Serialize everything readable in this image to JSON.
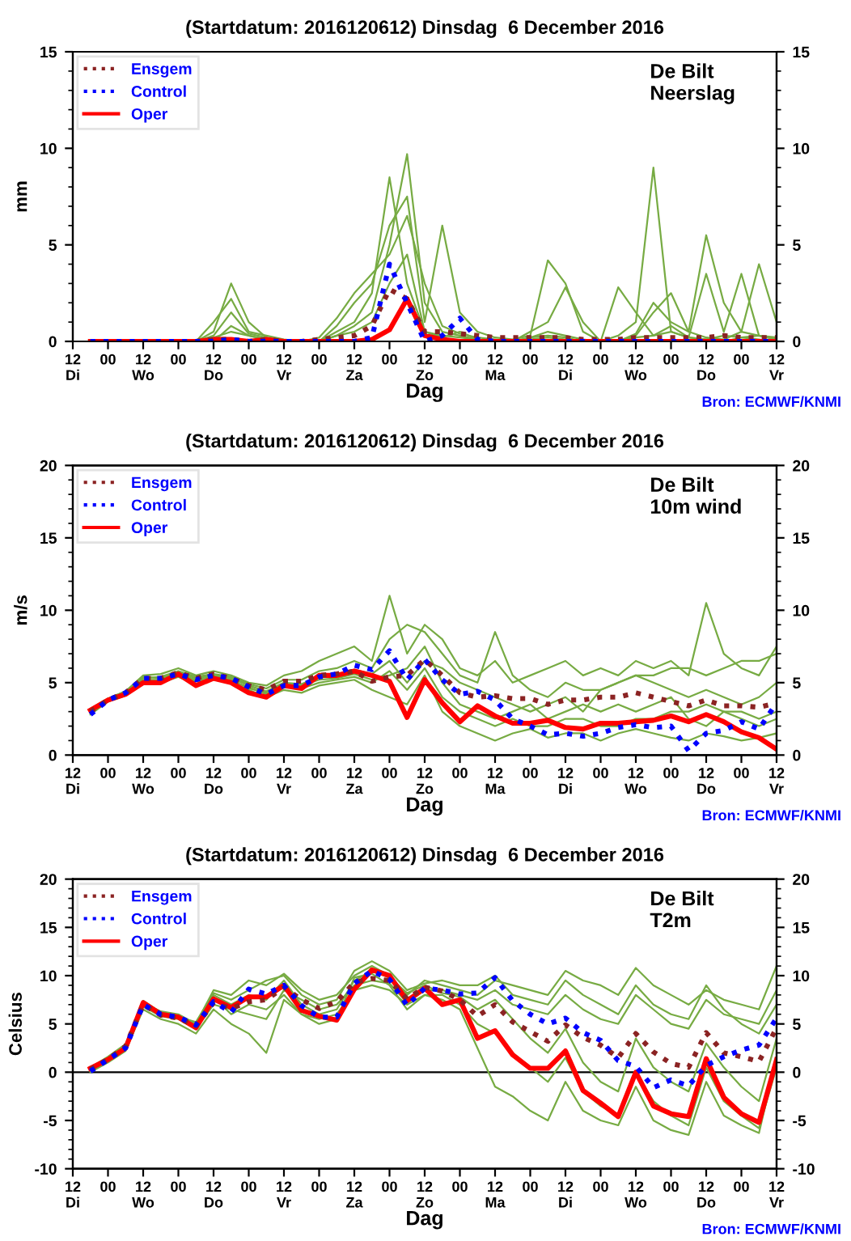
{
  "chart_data": [
    {
      "type": "line",
      "title": "(Startdatum: 2016120612) Dinsdag  6 December 2016",
      "xlabel": "Dag",
      "ylabel": "mm",
      "annotations": [
        "De Bilt\nNeerslag",
        "Bron: ECMWF/KNMI"
      ],
      "legend": "top left",
      "grid": false,
      "line_style": "solid",
      "marker": "none",
      "x": [
        "2016-12-06T18:00",
        "2016-12-07T00:00",
        "2016-12-07T06:00",
        "2016-12-07T12:00",
        "2016-12-07T18:00",
        "2016-12-08T00:00",
        "2016-12-08T06:00",
        "2016-12-08T12:00",
        "2016-12-08T18:00",
        "2016-12-09T00:00",
        "2016-12-09T06:00",
        "2016-12-09T12:00",
        "2016-12-09T18:00",
        "2016-12-10T00:00",
        "2016-12-10T06:00",
        "2016-12-10T12:00",
        "2016-12-10T18:00",
        "2016-12-11T00:00",
        "2016-12-11T06:00",
        "2016-12-11T12:00",
        "2016-12-11T18:00",
        "2016-12-12T00:00",
        "2016-12-12T06:00",
        "2016-12-12T12:00",
        "2016-12-12T18:00",
        "2016-12-13T00:00",
        "2016-12-13T06:00",
        "2016-12-13T12:00",
        "2016-12-13T18:00",
        "2016-12-14T00:00",
        "2016-12-14T06:00",
        "2016-12-14T12:00",
        "2016-12-14T18:00",
        "2016-12-15T00:00",
        "2016-12-15T06:00",
        "2016-12-15T12:00",
        "2016-12-15T18:00",
        "2016-12-16T00:00",
        "2016-12-16T06:00",
        "2016-12-16T12:00"
      ],
      "xlim": [
        "2016-12-06T12:00",
        "2016-12-16T12:00"
      ],
      "xticks": [
        {
          "value": "2016-12-06T12:00",
          "label": "12\nDi"
        },
        {
          "value": "2016-12-07T00:00",
          "label": "00"
        },
        {
          "value": "2016-12-07T12:00",
          "label": "12\nWo"
        },
        {
          "value": "2016-12-08T00:00",
          "label": "00"
        },
        {
          "value": "2016-12-08T12:00",
          "label": "12\nDo"
        },
        {
          "value": "2016-12-09T00:00",
          "label": "00"
        },
        {
          "value": "2016-12-09T12:00",
          "label": "12\nVr"
        },
        {
          "value": "2016-12-10T00:00",
          "label": "00"
        },
        {
          "value": "2016-12-10T12:00",
          "label": "12\nZa"
        },
        {
          "value": "2016-12-11T00:00",
          "label": "00"
        },
        {
          "value": "2016-12-11T12:00",
          "label": "12\nZo"
        },
        {
          "value": "2016-12-12T00:00",
          "label": "00"
        },
        {
          "value": "2016-12-12T12:00",
          "label": "12\nMa"
        },
        {
          "value": "2016-12-13T00:00",
          "label": "00"
        },
        {
          "value": "2016-12-13T12:00",
          "label": "12\nDi"
        },
        {
          "value": "2016-12-14T00:00",
          "label": "00"
        },
        {
          "value": "2016-12-14T12:00",
          "label": "12\nWo"
        },
        {
          "value": "2016-12-15T00:00",
          "label": "00"
        },
        {
          "value": "2016-12-15T12:00",
          "label": "12\nDo"
        },
        {
          "value": "2016-12-16T00:00",
          "label": "00"
        },
        {
          "value": "2016-12-16T12:00",
          "label": "12\nVr"
        }
      ],
      "ylim": [
        0,
        15
      ],
      "yticks": [
        0,
        5,
        10,
        15
      ],
      "y2lim": [
        0,
        15
      ],
      "y2ticks": [
        0,
        5,
        10,
        15
      ],
      "series": [
        {
          "color": "#77ab43",
          "values": [
            null,
            null,
            null,
            null,
            null,
            0,
            0,
            0.5,
            3.0,
            1.0,
            0.2,
            0,
            0,
            0,
            0.3,
            0.8,
            1.5,
            5.0,
            9.7,
            2.0,
            0.5,
            0.3,
            0.1,
            0,
            0,
            0.2,
            0.5,
            0.3,
            0.1,
            0,
            0,
            0.2,
            0.3,
            0.5,
            0.2,
            0.1,
            0,
            0.2,
            0.3,
            0.1
          ]
        },
        {
          "color": "#77ab43",
          "values": [
            null,
            null,
            null,
            null,
            null,
            0,
            0,
            0.2,
            0.5,
            0.3,
            0.1,
            0,
            0,
            0,
            0.5,
            1.0,
            2.5,
            8.5,
            3.0,
            0.5,
            0.3,
            0.2,
            0.1,
            0,
            0,
            0.1,
            0.2,
            0.1,
            0,
            0,
            0.3,
            1.0,
            9.0,
            0.5,
            0.2,
            0.1,
            0.3,
            0.2,
            0.1,
            0
          ]
        },
        {
          "color": "#77ab43",
          "values": [
            null,
            null,
            null,
            null,
            null,
            0,
            0,
            1.0,
            2.2,
            0.5,
            0.3,
            0.1,
            0,
            0,
            0.8,
            2.0,
            3.0,
            6.0,
            7.5,
            1.0,
            6.0,
            1.5,
            0.5,
            0.2,
            0.1,
            0.3,
            4.2,
            3.0,
            0.5,
            0,
            0,
            0.3,
            1.5,
            2.5,
            0.5,
            0.2,
            0.1,
            0.5,
            0.3,
            0.2
          ]
        },
        {
          "color": "#77ab43",
          "values": [
            null,
            null,
            null,
            null,
            null,
            0,
            0,
            0.3,
            1.5,
            0.4,
            0.2,
            0,
            0,
            0.2,
            1.2,
            2.5,
            3.5,
            4.5,
            6.5,
            3.0,
            0.8,
            0.4,
            0.2,
            0.1,
            0,
            0.5,
            1.0,
            2.8,
            1.0,
            0,
            0,
            0.4,
            2.0,
            1.0,
            0.5,
            5.5,
            2.0,
            0.5,
            4.0,
            1.0
          ]
        },
        {
          "color": "#77ab43",
          "values": [
            null,
            null,
            null,
            null,
            null,
            0,
            0,
            0,
            0.8,
            0.3,
            0.1,
            0,
            0,
            0,
            0.3,
            0.5,
            1.0,
            3.0,
            4.5,
            0.5,
            0.2,
            0.5,
            0.1,
            0,
            0,
            0.2,
            0.3,
            0.2,
            0,
            0,
            2.8,
            1.5,
            0.3,
            0.8,
            0.2,
            3.5,
            0.5,
            3.5,
            0.3,
            0.1
          ]
        },
        {
          "name": "Ensgem",
          "color": "#8b2323",
          "line_style": "dotted",
          "values": [
            0,
            0,
            0,
            0,
            0,
            0,
            0,
            0.1,
            0.1,
            0,
            0.1,
            0,
            0,
            0.1,
            0.2,
            0.3,
            0.8,
            2.7,
            2.2,
            0.5,
            0.5,
            0.4,
            0.3,
            0.2,
            0.2,
            0.2,
            0.2,
            0.2,
            0.1,
            0.1,
            0.1,
            0.2,
            0.2,
            0.2,
            0.2,
            0.2,
            0.3,
            0.2,
            0.2,
            0.2
          ]
        },
        {
          "name": "Control",
          "color": "#0000ff",
          "line_style": "dotted",
          "values": [
            0,
            0,
            0,
            0,
            0,
            0,
            0,
            0,
            0.1,
            0,
            0,
            0,
            0,
            0,
            0,
            0,
            0.2,
            4.0,
            2.0,
            0,
            0.3,
            1.2,
            0.1,
            0,
            0,
            0,
            0,
            0,
            0,
            0,
            0,
            0,
            0,
            0,
            0,
            0,
            0,
            0,
            0,
            0
          ]
        },
        {
          "name": "Oper",
          "color": "#ff0000",
          "line_style": "solid",
          "values": [
            0,
            0,
            0,
            0,
            0,
            0,
            0,
            0.1,
            0.1,
            0,
            0.1,
            0,
            0,
            0,
            0,
            0,
            0.1,
            0.6,
            2.2,
            0.3,
            0.1,
            0,
            0,
            0,
            0,
            0,
            0,
            0,
            0,
            0,
            0,
            0,
            0,
            0,
            0,
            0,
            0,
            0,
            0,
            0
          ]
        }
      ]
    },
    {
      "type": "line",
      "title": "(Startdatum: 2016120612) Dinsdag  6 December 2016",
      "xlabel": "Dag",
      "ylabel": "m/s",
      "annotations": [
        "De Bilt\n10m wind",
        "Bron: ECMWF/KNMI"
      ],
      "legend": "top left",
      "grid": false,
      "line_style": "solid",
      "marker": "none",
      "x": [
        "2016-12-06T18:00",
        "2016-12-07T00:00",
        "2016-12-07T06:00",
        "2016-12-07T12:00",
        "2016-12-07T18:00",
        "2016-12-08T00:00",
        "2016-12-08T06:00",
        "2016-12-08T12:00",
        "2016-12-08T18:00",
        "2016-12-09T00:00",
        "2016-12-09T06:00",
        "2016-12-09T12:00",
        "2016-12-09T18:00",
        "2016-12-10T00:00",
        "2016-12-10T06:00",
        "2016-12-10T12:00",
        "2016-12-10T18:00",
        "2016-12-11T00:00",
        "2016-12-11T06:00",
        "2016-12-11T12:00",
        "2016-12-11T18:00",
        "2016-12-12T00:00",
        "2016-12-12T06:00",
        "2016-12-12T12:00",
        "2016-12-12T18:00",
        "2016-12-13T00:00",
        "2016-12-13T06:00",
        "2016-12-13T12:00",
        "2016-12-13T18:00",
        "2016-12-14T00:00",
        "2016-12-14T06:00",
        "2016-12-14T12:00",
        "2016-12-14T18:00",
        "2016-12-15T00:00",
        "2016-12-15T06:00",
        "2016-12-15T12:00",
        "2016-12-15T18:00",
        "2016-12-16T00:00",
        "2016-12-16T06:00",
        "2016-12-16T12:00"
      ],
      "xlim": [
        "2016-12-06T12:00",
        "2016-12-16T12:00"
      ],
      "xticks": [
        {
          "value": "2016-12-06T12:00",
          "label": "12\nDi"
        },
        {
          "value": "2016-12-07T00:00",
          "label": "00"
        },
        {
          "value": "2016-12-07T12:00",
          "label": "12\nWo"
        },
        {
          "value": "2016-12-08T00:00",
          "label": "00"
        },
        {
          "value": "2016-12-08T12:00",
          "label": "12\nDo"
        },
        {
          "value": "2016-12-09T00:00",
          "label": "00"
        },
        {
          "value": "2016-12-09T12:00",
          "label": "12\nVr"
        },
        {
          "value": "2016-12-10T00:00",
          "label": "00"
        },
        {
          "value": "2016-12-10T12:00",
          "label": "12\nZa"
        },
        {
          "value": "2016-12-11T00:00",
          "label": "00"
        },
        {
          "value": "2016-12-11T12:00",
          "label": "12\nZo"
        },
        {
          "value": "2016-12-12T00:00",
          "label": "00"
        },
        {
          "value": "2016-12-12T12:00",
          "label": "12\nMa"
        },
        {
          "value": "2016-12-13T00:00",
          "label": "00"
        },
        {
          "value": "2016-12-13T12:00",
          "label": "12\nDi"
        },
        {
          "value": "2016-12-14T00:00",
          "label": "00"
        },
        {
          "value": "2016-12-14T12:00",
          "label": "12\nWo"
        },
        {
          "value": "2016-12-15T00:00",
          "label": "00"
        },
        {
          "value": "2016-12-15T12:00",
          "label": "12\nDo"
        },
        {
          "value": "2016-12-16T00:00",
          "label": "00"
        },
        {
          "value": "2016-12-16T12:00",
          "label": "12\nVr"
        }
      ],
      "ylim": [
        0,
        20
      ],
      "yticks": [
        0,
        5,
        10,
        15,
        20
      ],
      "y2lim": [
        0,
        20
      ],
      "y2ticks": [
        0,
        5,
        10,
        15,
        20
      ],
      "series": [
        {
          "color": "#77ab43",
          "values": [
            3.2,
            3.9,
            4.4,
            5.5,
            5.6,
            6.0,
            5.5,
            5.8,
            5.5,
            5.0,
            4.8,
            5.5,
            5.8,
            6.5,
            7.0,
            7.5,
            6.5,
            11.0,
            7.0,
            9.0,
            8.0,
            6.0,
            5.5,
            6.5,
            5.0,
            5.5,
            6.0,
            6.5,
            5.5,
            6.0,
            5.5,
            6.5,
            6.0,
            6.5,
            5.5,
            10.5,
            7.0,
            6.0,
            5.5,
            7.5
          ]
        },
        {
          "color": "#77ab43",
          "values": [
            2.8,
            3.7,
            4.1,
            5.0,
            5.0,
            5.4,
            4.9,
            5.2,
            5.0,
            4.5,
            4.0,
            4.5,
            4.3,
            4.8,
            5.0,
            5.2,
            4.5,
            4.0,
            3.5,
            5.5,
            3.0,
            2.0,
            1.5,
            1.0,
            1.5,
            1.8,
            1.2,
            1.5,
            1.5,
            1.0,
            1.5,
            1.8,
            1.5,
            1.2,
            1.0,
            1.5,
            1.3,
            1.0,
            1.2,
            1.5
          ]
        },
        {
          "color": "#77ab43",
          "values": [
            null,
            3.8,
            4.3,
            5.3,
            5.4,
            5.8,
            5.4,
            5.6,
            5.4,
            4.9,
            4.6,
            5.2,
            5.2,
            5.8,
            6.0,
            6.5,
            6.0,
            8.0,
            9.0,
            8.5,
            7.0,
            5.5,
            5.0,
            8.5,
            5.5,
            4.5,
            4.0,
            5.0,
            4.5,
            4.5,
            5.0,
            5.5,
            5.0,
            4.5,
            4.0,
            4.5,
            4.0,
            3.5,
            4.0,
            5.0
          ]
        },
        {
          "color": "#77ab43",
          "values": [
            null,
            3.8,
            4.2,
            5.2,
            5.2,
            5.6,
            5.2,
            5.4,
            5.2,
            4.6,
            4.3,
            4.9,
            4.8,
            5.2,
            5.3,
            5.6,
            5.2,
            5.5,
            6.0,
            7.5,
            5.0,
            3.5,
            3.0,
            2.5,
            3.0,
            3.5,
            2.5,
            3.0,
            3.5,
            3.0,
            3.5,
            3.0,
            3.5,
            4.0,
            2.5,
            2.0,
            3.0,
            2.5,
            2.0,
            2.5
          ]
        },
        {
          "color": "#77ab43",
          "values": [
            null,
            3.9,
            4.4,
            5.4,
            5.3,
            5.7,
            5.3,
            5.5,
            5.3,
            4.8,
            4.4,
            5.0,
            4.9,
            5.4,
            5.5,
            5.9,
            5.6,
            6.5,
            5.0,
            6.5,
            6.0,
            5.0,
            4.5,
            4.0,
            3.5,
            3.0,
            3.5,
            4.0,
            3.0,
            4.5,
            5.0,
            5.5,
            5.5,
            6.0,
            6.0,
            5.5,
            6.0,
            6.5,
            6.5,
            7.0
          ]
        },
        {
          "color": "#77ab43",
          "values": [
            2.9,
            3.7,
            4.2,
            5.1,
            5.1,
            5.5,
            5.1,
            5.3,
            5.1,
            4.7,
            4.2,
            4.7,
            4.6,
            5.0,
            5.2,
            5.4,
            5.0,
            5.8,
            4.5,
            6.0,
            4.0,
            3.0,
            2.5,
            2.0,
            2.5,
            2.0,
            2.0,
            2.5,
            2.5,
            2.0,
            2.0,
            2.5,
            2.5,
            3.0,
            3.0,
            3.5,
            3.0,
            3.0,
            2.5,
            3.0
          ]
        },
        {
          "name": "Ensgem",
          "color": "#8b2323",
          "line_style": "dotted",
          "values": [
            3.0,
            3.8,
            4.3,
            5.3,
            5.3,
            5.7,
            5.3,
            5.6,
            5.3,
            4.8,
            4.5,
            5.1,
            5.1,
            5.5,
            5.6,
            5.8,
            5.1,
            5.4,
            5.5,
            6.6,
            5.5,
            4.3,
            4.0,
            4.1,
            3.9,
            3.9,
            3.5,
            3.8,
            3.8,
            4.0,
            4.0,
            4.3,
            4.0,
            3.7,
            3.4,
            3.8,
            3.4,
            3.4,
            3.3,
            3.6
          ]
        },
        {
          "name": "Control",
          "color": "#0000ff",
          "line_style": "dotted",
          "values": [
            2.8,
            3.8,
            4.3,
            5.3,
            5.3,
            5.6,
            5.2,
            5.5,
            5.3,
            4.7,
            4.2,
            4.8,
            4.8,
            5.4,
            5.6,
            6.2,
            5.9,
            7.2,
            5.2,
            6.6,
            5.2,
            4.2,
            4.4,
            3.8,
            2.5,
            2.0,
            1.4,
            1.5,
            1.3,
            1.5,
            1.9,
            2.1,
            1.9,
            2.0,
            0.3,
            1.5,
            1.7,
            2.3,
            1.8,
            3.6
          ]
        },
        {
          "name": "Oper",
          "color": "#ff0000",
          "line_style": "solid",
          "values": [
            3.1,
            3.8,
            4.2,
            5.0,
            5.0,
            5.6,
            4.8,
            5.3,
            5.0,
            4.3,
            4.0,
            4.8,
            4.6,
            5.5,
            5.5,
            5.8,
            5.5,
            5.1,
            2.6,
            5.2,
            3.6,
            2.3,
            3.4,
            2.7,
            2.2,
            2.2,
            2.4,
            1.9,
            1.8,
            2.2,
            2.2,
            2.3,
            2.4,
            2.7,
            2.3,
            2.8,
            2.3,
            1.6,
            1.2,
            0.4
          ]
        }
      ]
    },
    {
      "type": "line",
      "title": "(Startdatum: 2016120612) Dinsdag  6 December 2016",
      "xlabel": "Dag",
      "ylabel": "Celsius",
      "annotations": [
        "De Bilt\nT2m",
        "Bron: ECMWF/KNMI"
      ],
      "legend": "top left",
      "grid": false,
      "line_style": "solid",
      "marker": "none",
      "x": [
        "2016-12-06T18:00",
        "2016-12-07T00:00",
        "2016-12-07T06:00",
        "2016-12-07T12:00",
        "2016-12-07T18:00",
        "2016-12-08T00:00",
        "2016-12-08T06:00",
        "2016-12-08T12:00",
        "2016-12-08T18:00",
        "2016-12-09T00:00",
        "2016-12-09T06:00",
        "2016-12-09T12:00",
        "2016-12-09T18:00",
        "2016-12-10T00:00",
        "2016-12-10T06:00",
        "2016-12-10T12:00",
        "2016-12-10T18:00",
        "2016-12-11T00:00",
        "2016-12-11T06:00",
        "2016-12-11T12:00",
        "2016-12-11T18:00",
        "2016-12-12T00:00",
        "2016-12-12T06:00",
        "2016-12-12T12:00",
        "2016-12-12T18:00",
        "2016-12-13T00:00",
        "2016-12-13T06:00",
        "2016-12-13T12:00",
        "2016-12-13T18:00",
        "2016-12-14T00:00",
        "2016-12-14T06:00",
        "2016-12-14T12:00",
        "2016-12-14T18:00",
        "2016-12-15T00:00",
        "2016-12-15T06:00",
        "2016-12-15T12:00",
        "2016-12-15T18:00",
        "2016-12-16T00:00",
        "2016-12-16T06:00",
        "2016-12-16T12:00"
      ],
      "xlim": [
        "2016-12-06T12:00",
        "2016-12-16T12:00"
      ],
      "xticks": [
        {
          "value": "2016-12-06T12:00",
          "label": "12\nDi"
        },
        {
          "value": "2016-12-07T00:00",
          "label": "00"
        },
        {
          "value": "2016-12-07T12:00",
          "label": "12\nWo"
        },
        {
          "value": "2016-12-08T00:00",
          "label": "00"
        },
        {
          "value": "2016-12-08T12:00",
          "label": "12\nDo"
        },
        {
          "value": "2016-12-09T00:00",
          "label": "00"
        },
        {
          "value": "2016-12-09T12:00",
          "label": "12\nVr"
        },
        {
          "value": "2016-12-10T00:00",
          "label": "00"
        },
        {
          "value": "2016-12-10T12:00",
          "label": "12\nZa"
        },
        {
          "value": "2016-12-11T00:00",
          "label": "00"
        },
        {
          "value": "2016-12-11T12:00",
          "label": "12\nZo"
        },
        {
          "value": "2016-12-12T00:00",
          "label": "00"
        },
        {
          "value": "2016-12-12T12:00",
          "label": "12\nMa"
        },
        {
          "value": "2016-12-13T00:00",
          "label": "00"
        },
        {
          "value": "2016-12-13T12:00",
          "label": "12\nDi"
        },
        {
          "value": "2016-12-14T00:00",
          "label": "00"
        },
        {
          "value": "2016-12-14T12:00",
          "label": "12\nWo"
        },
        {
          "value": "2016-12-15T00:00",
          "label": "00"
        },
        {
          "value": "2016-12-15T12:00",
          "label": "12\nDo"
        },
        {
          "value": "2016-12-16T00:00",
          "label": "00"
        },
        {
          "value": "2016-12-16T12:00",
          "label": "12\nVr"
        }
      ],
      "ylim": [
        -10,
        20
      ],
      "yticks": [
        -10,
        -5,
        0,
        5,
        10,
        15,
        20
      ],
      "y2lim": [
        -10,
        20
      ],
      "y2ticks": [
        -10,
        -5,
        0,
        5,
        10,
        15,
        20
      ],
      "ref_lines": [
        {
          "axis": "y",
          "value": 0,
          "color": "#000000"
        }
      ],
      "series": [
        {
          "color": "#77ab43",
          "values": [
            0.3,
            1.5,
            2.8,
            7.2,
            6.3,
            6.0,
            5.0,
            8.5,
            8.0,
            9.5,
            9.0,
            10.2,
            8.5,
            7.5,
            8.0,
            10.0,
            11.0,
            10.0,
            8.0,
            9.5,
            9.0,
            8.5,
            8.0,
            9.5,
            9.0,
            8.5,
            8.0,
            10.5,
            9.5,
            9.0,
            8.0,
            10.8,
            9.0,
            8.0,
            7.0,
            8.5,
            7.5,
            7.0,
            6.5,
            11.0
          ]
        },
        {
          "color": "#77ab43",
          "values": [
            0.0,
            1.0,
            2.2,
            6.5,
            5.5,
            5.0,
            4.0,
            6.5,
            5.0,
            4.0,
            2.0,
            7.5,
            6.0,
            5.5,
            6.0,
            8.5,
            9.0,
            8.5,
            7.0,
            8.0,
            7.5,
            6.5,
            2.5,
            -1.5,
            -2.5,
            -4.0,
            -5.0,
            -1.0,
            -4.0,
            -5.0,
            -5.5,
            -1.5,
            -5.0,
            -6.0,
            -6.5,
            -1.0,
            -4.5,
            -5.5,
            -6.3,
            1.5
          ]
        },
        {
          "color": "#77ab43",
          "values": [
            0.4,
            1.4,
            2.6,
            7.0,
            6.0,
            5.8,
            4.8,
            8.0,
            7.0,
            8.0,
            7.5,
            9.5,
            7.0,
            6.0,
            6.5,
            9.5,
            10.5,
            9.8,
            8.2,
            9.0,
            8.2,
            7.8,
            6.5,
            7.5,
            5.5,
            3.5,
            2.0,
            4.5,
            1.0,
            -1.0,
            -2.0,
            3.5,
            0.5,
            -1.0,
            -2.0,
            3.0,
            0.5,
            -1.5,
            -3.0,
            3.5
          ]
        },
        {
          "color": "#77ab43",
          "values": [
            0.2,
            1.2,
            2.4,
            6.8,
            5.8,
            5.5,
            4.5,
            7.0,
            6.5,
            6.0,
            5.5,
            8.5,
            7.5,
            6.5,
            7.0,
            9.0,
            9.5,
            9.2,
            7.2,
            8.5,
            8.5,
            8.0,
            7.5,
            8.5,
            7.0,
            6.5,
            6.0,
            8.0,
            6.5,
            5.5,
            5.0,
            8.0,
            6.5,
            5.0,
            4.5,
            7.5,
            6.0,
            5.5,
            5.0,
            8.5
          ]
        },
        {
          "color": "#77ab43",
          "values": [
            0.5,
            1.6,
            2.9,
            7.4,
            6.2,
            5.9,
            4.7,
            7.8,
            6.0,
            7.0,
            6.5,
            8.0,
            6.0,
            5.0,
            5.5,
            9.8,
            10.2,
            9.0,
            6.5,
            8.0,
            8.0,
            7.0,
            5.0,
            4.0,
            2.0,
            0.5,
            -1.0,
            1.5,
            -2.0,
            -3.5,
            -4.5,
            0.0,
            -3.0,
            -4.5,
            -5.5,
            0.5,
            -3.0,
            -4.5,
            -5.8,
            0.5
          ]
        },
        {
          "color": "#77ab43",
          "values": [
            0.3,
            1.3,
            2.5,
            6.9,
            6.1,
            5.7,
            5.2,
            8.2,
            7.5,
            8.5,
            9.5,
            10.0,
            8.0,
            7.0,
            7.5,
            10.5,
            11.5,
            10.5,
            8.5,
            9.2,
            9.5,
            9.0,
            9.0,
            10.0,
            8.0,
            7.5,
            7.0,
            9.5,
            8.0,
            7.0,
            6.0,
            9.0,
            7.0,
            6.0,
            5.5,
            9.0,
            6.5,
            5.0,
            4.0,
            7.0
          ]
        },
        {
          "name": "Ensgem",
          "color": "#8b2323",
          "line_style": "dotted",
          "values": [
            0.3,
            1.3,
            2.7,
            7.0,
            5.9,
            5.6,
            4.8,
            7.2,
            6.6,
            7.3,
            7.5,
            8.8,
            7.5,
            6.6,
            7.3,
            9.3,
            9.7,
            9.5,
            7.6,
            8.8,
            8.4,
            7.5,
            5.8,
            7.0,
            5.2,
            4.2,
            3.2,
            4.9,
            3.6,
            2.8,
            1.5,
            4.0,
            2.1,
            0.9,
            0.5,
            4.1,
            2.0,
            1.6,
            1.1,
            4.6
          ]
        },
        {
          "name": "Control",
          "color": "#0000ff",
          "line_style": "dotted",
          "values": [
            0.1,
            1.3,
            2.5,
            7.0,
            6.0,
            5.7,
            4.9,
            7.3,
            6.2,
            8.6,
            8.1,
            9.0,
            6.9,
            5.7,
            5.7,
            9.2,
            10.5,
            9.6,
            6.9,
            8.7,
            8.5,
            8.1,
            8.2,
            9.8,
            7.4,
            6.0,
            5.0,
            5.6,
            4.1,
            3.3,
            1.2,
            0.6,
            -1.6,
            -0.8,
            -1.4,
            0.7,
            1.6,
            2.3,
            2.8,
            5.6
          ]
        },
        {
          "name": "Oper",
          "color": "#ff0000",
          "line_style": "solid",
          "values": [
            0.4,
            1.3,
            2.5,
            7.2,
            6.0,
            5.7,
            4.6,
            7.6,
            6.7,
            7.8,
            7.8,
            9.0,
            6.4,
            5.8,
            5.4,
            8.6,
            10.6,
            10.0,
            7.4,
            8.7,
            7.0,
            7.5,
            3.5,
            4.3,
            1.8,
            0.4,
            0.4,
            2.2,
            -1.9,
            -3.2,
            -4.6,
            0.0,
            -3.5,
            -4.3,
            -4.6,
            1.4,
            -2.6,
            -4.3,
            -5.2,
            1.3
          ]
        }
      ]
    }
  ]
}
